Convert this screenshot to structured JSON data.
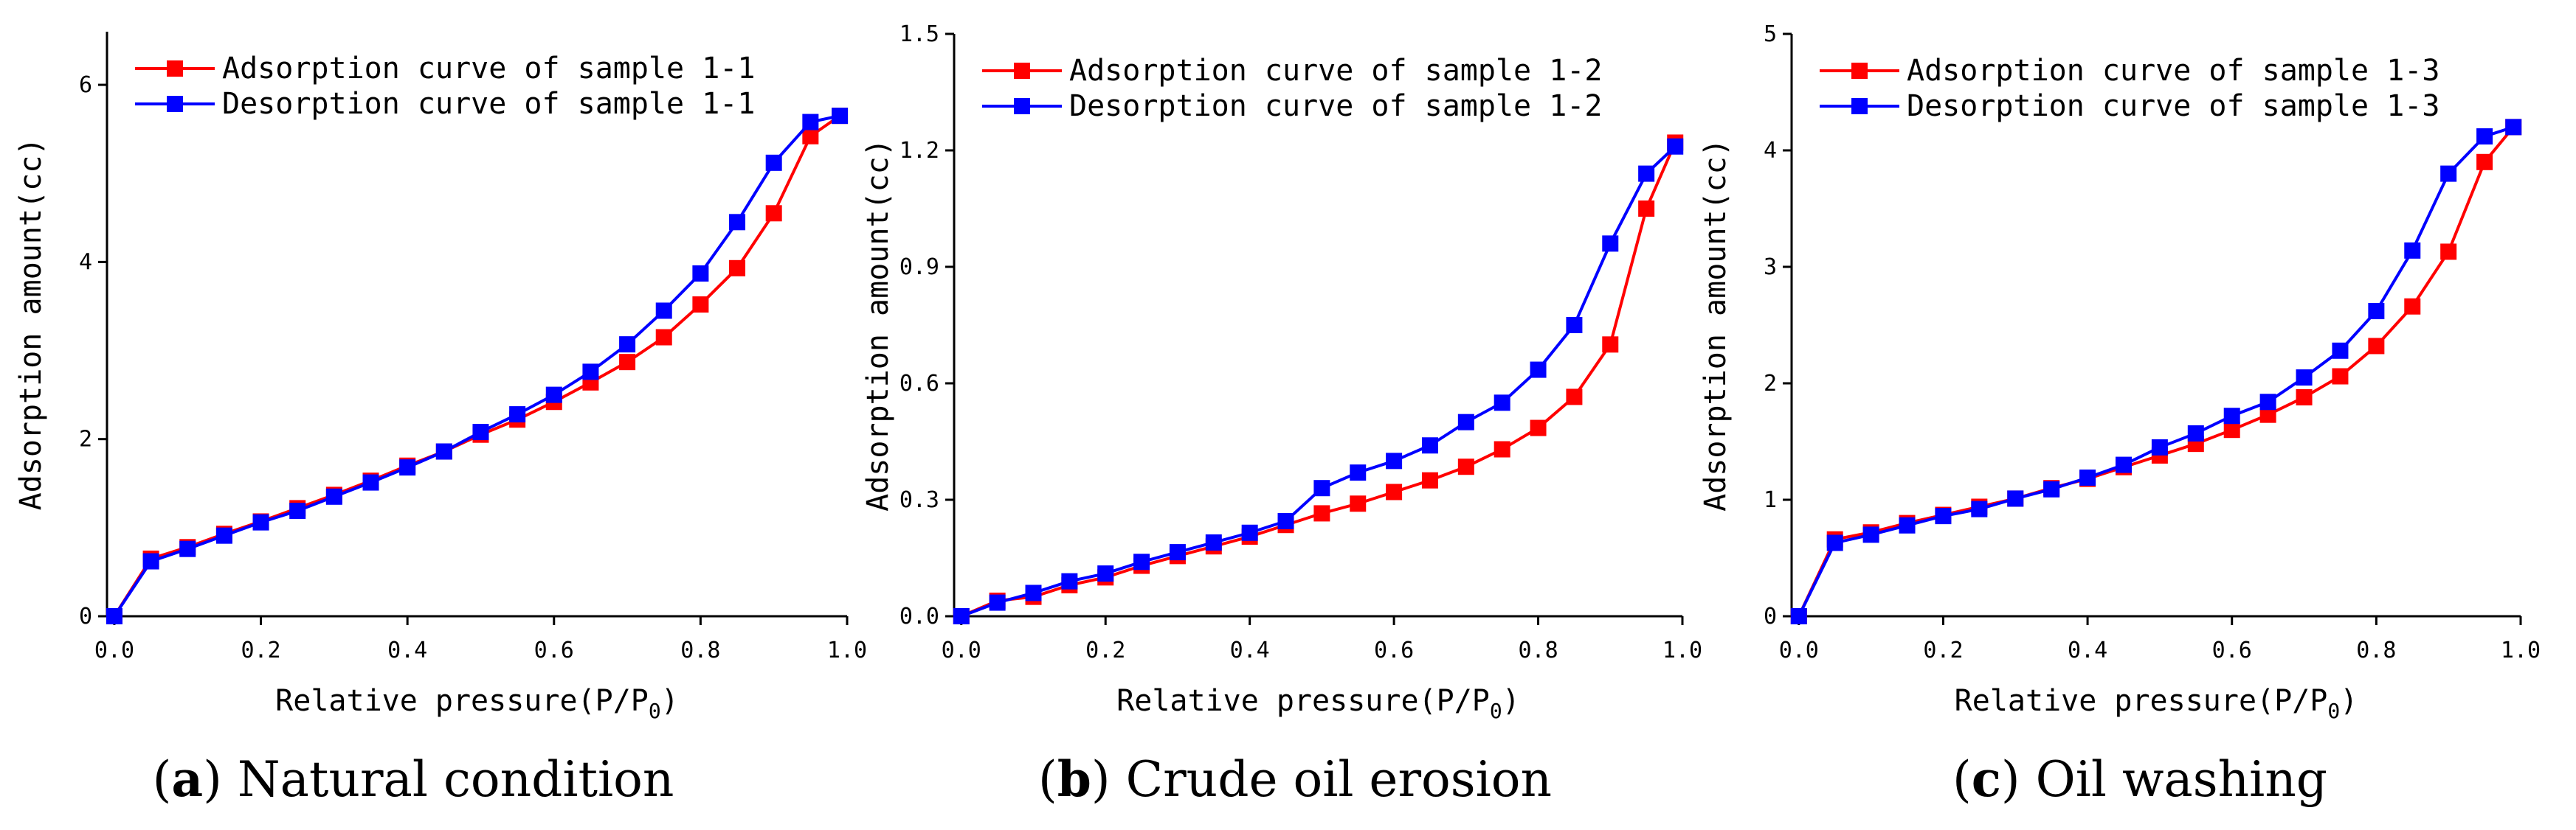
{
  "chart_data": [
    {
      "type": "line",
      "panel": "a",
      "caption_letter": "a",
      "caption_text": "Natural condition",
      "xlabel": "Relative pressure(P/P",
      "xlabel_sub": "0",
      "xlabel_end": ")",
      "ylabel": "Adsorption amount(cc)",
      "xlim": [
        -0.01,
        1.0
      ],
      "ylim": [
        0,
        6.6
      ],
      "xticks": [
        0.0,
        0.2,
        0.4,
        0.6,
        0.8,
        1.0
      ],
      "xtick_labels": [
        "0.0",
        "0.2",
        "0.4",
        "0.6",
        "0.8",
        "1.0"
      ],
      "yticks": [
        0,
        2,
        4,
        6
      ],
      "ytick_labels": [
        "0",
        "2",
        "4",
        "6"
      ],
      "legend_position": "top-left",
      "series": [
        {
          "name": "Adsorption curve of sample 1-1",
          "color": "#ff0000",
          "x": [
            0.0,
            0.05,
            0.1,
            0.15,
            0.2,
            0.25,
            0.3,
            0.35,
            0.4,
            0.45,
            0.5,
            0.55,
            0.6,
            0.65,
            0.7,
            0.75,
            0.8,
            0.85,
            0.9,
            0.95,
            0.99
          ],
          "y": [
            0.0,
            0.65,
            0.78,
            0.93,
            1.07,
            1.22,
            1.37,
            1.53,
            1.7,
            1.86,
            2.05,
            2.22,
            2.42,
            2.64,
            2.87,
            3.15,
            3.52,
            3.93,
            4.55,
            5.42,
            5.65
          ]
        },
        {
          "name": "Desorption curve of sample 1-1",
          "color": "#0000ff",
          "x": [
            0.0,
            0.05,
            0.1,
            0.15,
            0.2,
            0.25,
            0.3,
            0.35,
            0.4,
            0.45,
            0.5,
            0.55,
            0.6,
            0.65,
            0.7,
            0.75,
            0.8,
            0.85,
            0.9,
            0.95,
            0.99
          ],
          "y": [
            0.0,
            0.62,
            0.76,
            0.91,
            1.06,
            1.19,
            1.35,
            1.51,
            1.68,
            1.86,
            2.08,
            2.28,
            2.5,
            2.76,
            3.07,
            3.45,
            3.87,
            4.45,
            5.12,
            5.58,
            5.65
          ]
        }
      ]
    },
    {
      "type": "line",
      "panel": "b",
      "caption_letter": "b",
      "caption_text": "Crude oil erosion",
      "xlabel": "Relative pressure(P/P",
      "xlabel_sub": "0",
      "xlabel_end": ")",
      "ylabel": "Adsorption amount(cc)",
      "xlim": [
        -0.01,
        1.0
      ],
      "ylim": [
        0,
        1.5
      ],
      "xticks": [
        0.0,
        0.2,
        0.4,
        0.6,
        0.8,
        1.0
      ],
      "xtick_labels": [
        "0.0",
        "0.2",
        "0.4",
        "0.6",
        "0.8",
        "1.0"
      ],
      "yticks": [
        0.0,
        0.3,
        0.6,
        0.9,
        1.2,
        1.5
      ],
      "ytick_labels": [
        "0.0",
        "0.3",
        "0.6",
        "0.9",
        "1.2",
        "1.5"
      ],
      "legend_position": "top-left",
      "series": [
        {
          "name": "Adsorption curve of sample 1-2",
          "color": "#ff0000",
          "x": [
            0.0,
            0.05,
            0.1,
            0.15,
            0.2,
            0.25,
            0.3,
            0.35,
            0.4,
            0.45,
            0.5,
            0.55,
            0.6,
            0.65,
            0.7,
            0.75,
            0.8,
            0.85,
            0.9,
            0.95,
            0.99
          ],
          "y": [
            0.0,
            0.04,
            0.05,
            0.08,
            0.1,
            0.13,
            0.155,
            0.18,
            0.205,
            0.235,
            0.265,
            0.29,
            0.32,
            0.35,
            0.385,
            0.43,
            0.485,
            0.565,
            0.7,
            1.05,
            1.22
          ]
        },
        {
          "name": "Desorption curve of sample 1-2",
          "color": "#0000ff",
          "x": [
            0.0,
            0.05,
            0.1,
            0.15,
            0.2,
            0.25,
            0.3,
            0.35,
            0.4,
            0.45,
            0.5,
            0.55,
            0.6,
            0.65,
            0.7,
            0.75,
            0.8,
            0.85,
            0.9,
            0.95,
            0.99
          ],
          "y": [
            0.0,
            0.035,
            0.06,
            0.09,
            0.11,
            0.14,
            0.165,
            0.19,
            0.215,
            0.245,
            0.33,
            0.37,
            0.4,
            0.44,
            0.5,
            0.55,
            0.635,
            0.75,
            0.96,
            1.14,
            1.21
          ]
        }
      ]
    },
    {
      "type": "line",
      "panel": "c",
      "caption_letter": "c",
      "caption_text": "Oil washing",
      "xlabel": "Relative pressure(P/P",
      "xlabel_sub": "0",
      "xlabel_end": ")",
      "ylabel": "Adsorption amount(cc)",
      "xlim": [
        -0.01,
        1.0
      ],
      "ylim": [
        0,
        5
      ],
      "xticks": [
        0.0,
        0.2,
        0.4,
        0.6,
        0.8,
        1.0
      ],
      "xtick_labels": [
        "0.0",
        "0.2",
        "0.4",
        "0.6",
        "0.8",
        "1.0"
      ],
      "yticks": [
        0,
        1,
        2,
        3,
        4,
        5
      ],
      "ytick_labels": [
        "0",
        "1",
        "2",
        "3",
        "4",
        "5"
      ],
      "legend_position": "top-left",
      "series": [
        {
          "name": "Adsorption curve of sample 1-3",
          "color": "#ff0000",
          "x": [
            0.0,
            0.05,
            0.1,
            0.15,
            0.2,
            0.25,
            0.3,
            0.35,
            0.4,
            0.45,
            0.5,
            0.55,
            0.6,
            0.65,
            0.7,
            0.75,
            0.8,
            0.85,
            0.9,
            0.95,
            0.99
          ],
          "y": [
            0.0,
            0.66,
            0.72,
            0.8,
            0.87,
            0.94,
            1.01,
            1.1,
            1.18,
            1.28,
            1.38,
            1.48,
            1.6,
            1.73,
            1.88,
            2.06,
            2.32,
            2.66,
            3.13,
            3.9,
            4.2
          ]
        },
        {
          "name": "Desorption curve of sample 1-3",
          "color": "#0000ff",
          "x": [
            0.0,
            0.05,
            0.1,
            0.15,
            0.2,
            0.25,
            0.3,
            0.35,
            0.4,
            0.45,
            0.5,
            0.55,
            0.6,
            0.65,
            0.7,
            0.75,
            0.8,
            0.85,
            0.9,
            0.95,
            0.99
          ],
          "y": [
            0.0,
            0.63,
            0.7,
            0.78,
            0.86,
            0.92,
            1.01,
            1.09,
            1.19,
            1.3,
            1.45,
            1.57,
            1.72,
            1.84,
            2.05,
            2.28,
            2.62,
            3.14,
            3.8,
            4.12,
            4.2
          ]
        }
      ]
    }
  ]
}
